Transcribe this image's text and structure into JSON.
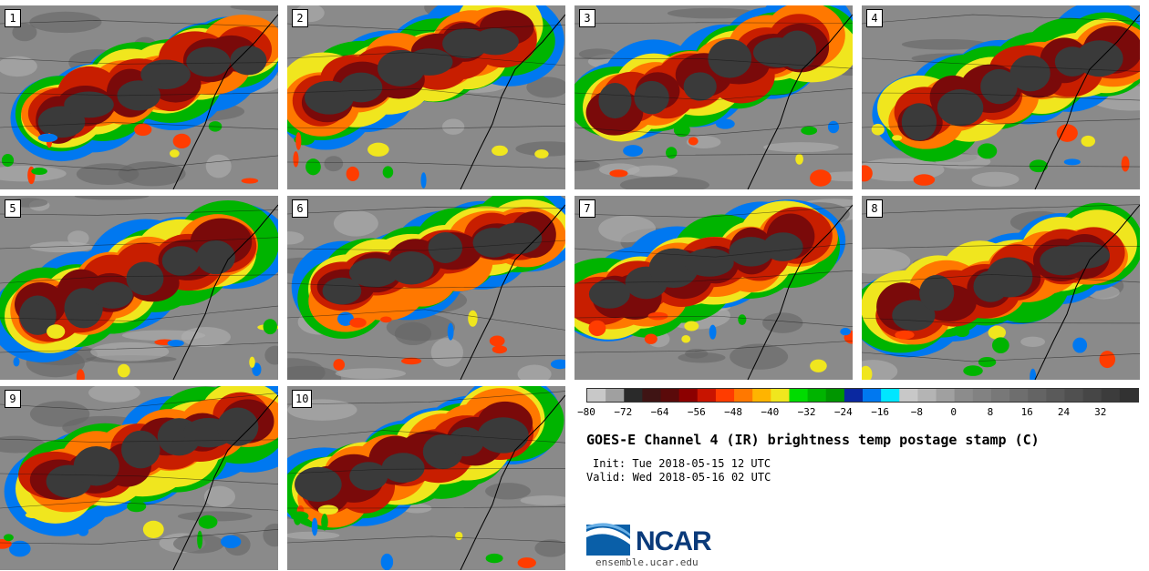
{
  "panels": [
    {
      "number": "1"
    },
    {
      "number": "2"
    },
    {
      "number": "3"
    },
    {
      "number": "4"
    },
    {
      "number": "5"
    },
    {
      "number": "6"
    },
    {
      "number": "7"
    },
    {
      "number": "8"
    },
    {
      "number": "9"
    },
    {
      "number": "10"
    }
  ],
  "colorbar": {
    "colors": [
      "#c8c8c8",
      "#a0a0a0",
      "#2a2a2a",
      "#3f1414",
      "#5a0a0a",
      "#8c0000",
      "#c81400",
      "#ff3c00",
      "#ff7800",
      "#ffb400",
      "#f0e61e",
      "#00dc00",
      "#00b400",
      "#009600",
      "#0a28a0",
      "#0078f0",
      "#00e6ff",
      "#c8c8c8",
      "#b4b4b4",
      "#a0a0a0",
      "#8c8c8c",
      "#828282",
      "#787878",
      "#6e6e6e",
      "#646464",
      "#5a5a5a",
      "#505050",
      "#464646",
      "#3c3c3c",
      "#323232"
    ],
    "tick_labels": [
      "−80",
      "−72",
      "−64",
      "−56",
      "−48",
      "−40",
      "−32",
      "−24",
      "−16",
      "−8",
      "0",
      "8",
      "16",
      "24",
      "32"
    ]
  },
  "title": "GOES-E Channel 4 (IR) brightness temp postage stamp (C)",
  "init": "Init: Tue 2018-05-15 12 UTC",
  "valid": "Valid: Wed 2018-05-16 02 UTC",
  "logo": {
    "name": "NCAR",
    "url": "ensemble.ucar.edu"
  }
}
